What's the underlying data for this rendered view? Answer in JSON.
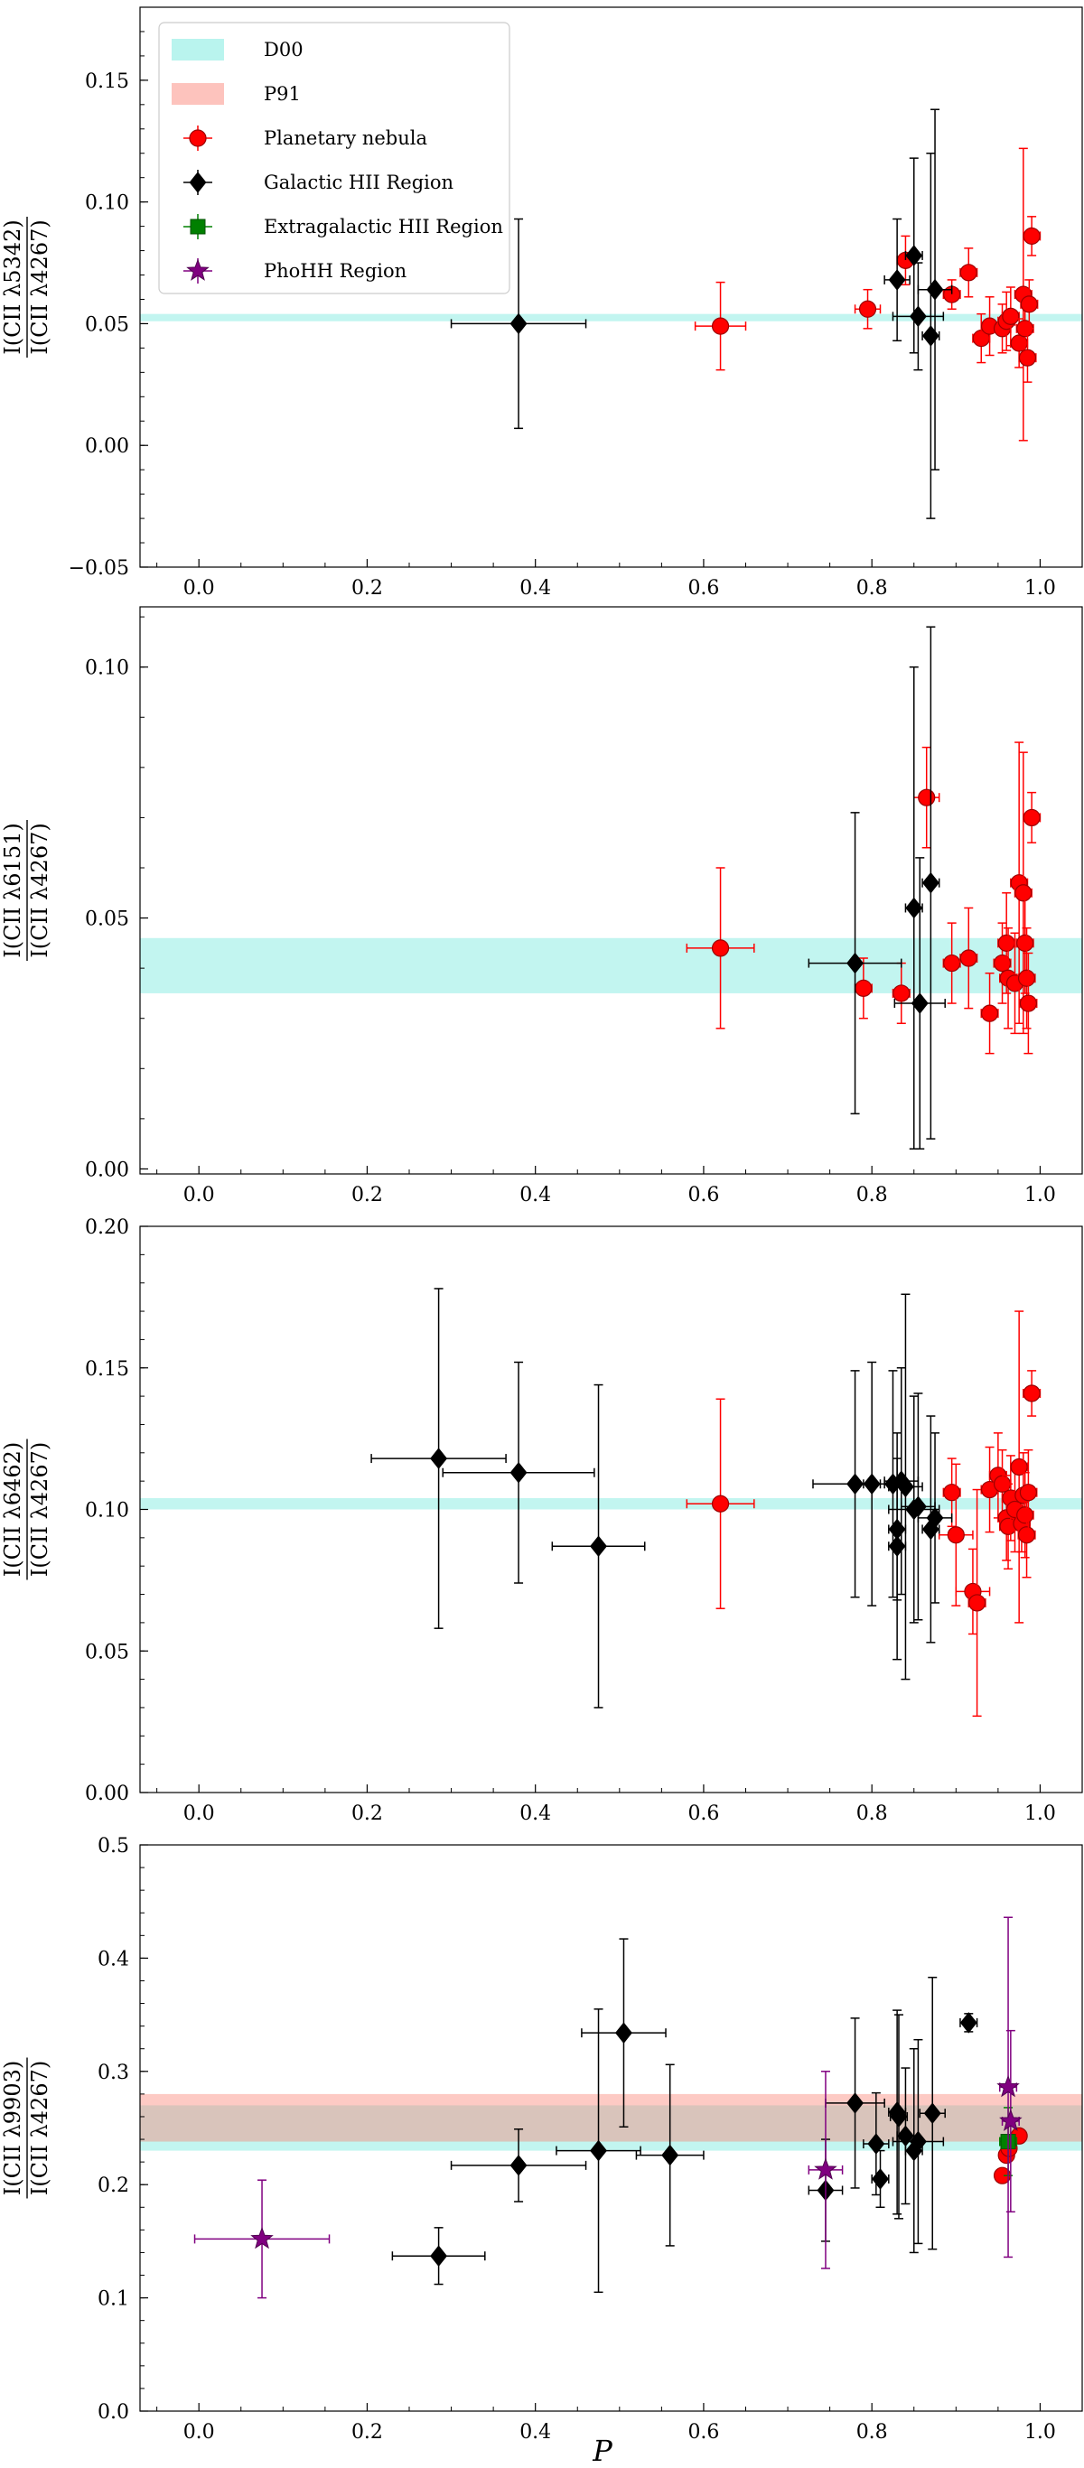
{
  "legend": {
    "entries": [
      {
        "label": "D00",
        "kind": "band",
        "color": "#40e0d0"
      },
      {
        "label": "P91",
        "kind": "band",
        "color": "#fa8072"
      },
      {
        "label": "Planetary nebula",
        "kind": "circle",
        "color": "#ff0000"
      },
      {
        "label": "Galactic HII Region",
        "kind": "diamond",
        "color": "#000000"
      },
      {
        "label": "Extragalactic HII Region",
        "kind": "square",
        "color": "#008000"
      },
      {
        "label": "PhoHH Region",
        "kind": "star",
        "color": "#800080"
      }
    ]
  },
  "xlabel": "P",
  "chart_data": [
    {
      "type": "scatter",
      "ylabel_num": "I(CII λ5342)",
      "ylabel_den": "I(CII λ4267)",
      "xlim": [
        -0.07,
        1.05
      ],
      "ylim": [
        -0.05,
        0.18
      ],
      "xticks": [
        "0.0",
        "0.2",
        "0.4",
        "0.6",
        "0.8",
        "1.0"
      ],
      "yticks": [
        "−0.05",
        "0.00",
        "0.05",
        "0.10",
        "0.15"
      ],
      "bands": [
        {
          "name": "D00",
          "y0": 0.051,
          "y1": 0.054
        }
      ],
      "series": [
        {
          "name": "Planetary nebula",
          "points": [
            [
              0.62,
              0.049,
              0.03,
              0.018
            ],
            [
              0.795,
              0.056,
              0.015,
              0.008
            ],
            [
              0.84,
              0.076,
              0.01,
              0.01
            ],
            [
              0.895,
              0.062,
              0.01,
              0.006
            ],
            [
              0.915,
              0.071,
              0.01,
              0.01
            ],
            [
              0.93,
              0.044,
              0.01,
              0.01
            ],
            [
              0.94,
              0.049,
              0.01,
              0.012
            ],
            [
              0.955,
              0.048,
              0.01,
              0.01
            ],
            [
              0.96,
              0.051,
              0.01,
              0.012
            ],
            [
              0.965,
              0.053,
              0.01,
              0.012
            ],
            [
              0.975,
              0.042,
              0.01,
              0.01
            ],
            [
              0.98,
              0.062,
              0.01,
              0.06
            ],
            [
              0.982,
              0.048,
              0.01,
              0.01
            ],
            [
              0.985,
              0.036,
              0.01,
              0.01
            ],
            [
              0.987,
              0.058,
              0.01,
              0.01
            ],
            [
              0.99,
              0.086,
              0.01,
              0.008
            ]
          ]
        },
        {
          "name": "Galactic HII Region",
          "points": [
            [
              0.38,
              0.05,
              0.08,
              0.043
            ],
            [
              0.83,
              0.068,
              0.015,
              0.025
            ],
            [
              0.85,
              0.078,
              0.01,
              0.04
            ],
            [
              0.855,
              0.053,
              0.03,
              0.022
            ],
            [
              0.87,
              0.045,
              0.01,
              0.075
            ],
            [
              0.875,
              0.064,
              0.02,
              0.074
            ]
          ]
        }
      ]
    },
    {
      "type": "scatter",
      "ylabel_num": "I(CII λ6151)",
      "ylabel_den": "I(CII λ4267)",
      "xlim": [
        -0.07,
        1.05
      ],
      "ylim": [
        -0.001,
        0.112
      ],
      "xticks": [
        "0.0",
        "0.2",
        "0.4",
        "0.6",
        "0.8",
        "1.0"
      ],
      "yticks": [
        "0.00",
        "0.05",
        "0.10"
      ],
      "bands": [
        {
          "name": "D00",
          "y0": 0.035,
          "y1": 0.046
        }
      ],
      "series": [
        {
          "name": "Planetary nebula",
          "points": [
            [
              0.62,
              0.044,
              0.04,
              0.016
            ],
            [
              0.79,
              0.036,
              0.01,
              0.006
            ],
            [
              0.835,
              0.035,
              0.01,
              0.006
            ],
            [
              0.865,
              0.074,
              0.015,
              0.01
            ],
            [
              0.895,
              0.041,
              0.01,
              0.008
            ],
            [
              0.915,
              0.042,
              0.01,
              0.01
            ],
            [
              0.94,
              0.031,
              0.01,
              0.008
            ],
            [
              0.955,
              0.041,
              0.01,
              0.008
            ],
            [
              0.96,
              0.045,
              0.01,
              0.01
            ],
            [
              0.962,
              0.038,
              0.01,
              0.01
            ],
            [
              0.97,
              0.037,
              0.01,
              0.01
            ],
            [
              0.975,
              0.057,
              0.01,
              0.028
            ],
            [
              0.98,
              0.055,
              0.01,
              0.028
            ],
            [
              0.982,
              0.045,
              0.01,
              0.01
            ],
            [
              0.984,
              0.038,
              0.01,
              0.01
            ],
            [
              0.986,
              0.033,
              0.01,
              0.01
            ],
            [
              0.99,
              0.07,
              0.01,
              0.005
            ]
          ]
        },
        {
          "name": "Galactic HII Region",
          "points": [
            [
              0.78,
              0.041,
              0.055,
              0.03
            ],
            [
              0.85,
              0.052,
              0.01,
              0.048
            ],
            [
              0.857,
              0.033,
              0.03,
              0.029
            ],
            [
              0.87,
              0.057,
              0.01,
              0.051
            ]
          ]
        }
      ]
    },
    {
      "type": "scatter",
      "ylabel_num": "I(CII λ6462)",
      "ylabel_den": "I(CII λ4267)",
      "xlim": [
        -0.07,
        1.05
      ],
      "ylim": [
        0.0,
        0.2
      ],
      "xticks": [
        "0.0",
        "0.2",
        "0.4",
        "0.6",
        "0.8",
        "1.0"
      ],
      "yticks": [
        "0.00",
        "0.05",
        "0.10",
        "0.15",
        "0.20"
      ],
      "bands": [
        {
          "name": "D00",
          "y0": 0.1,
          "y1": 0.104
        }
      ],
      "series": [
        {
          "name": "Planetary nebula",
          "points": [
            [
              0.62,
              0.102,
              0.04,
              0.037
            ],
            [
              0.895,
              0.106,
              0.01,
              0.012
            ],
            [
              0.9,
              0.091,
              0.02,
              0.025
            ],
            [
              0.92,
              0.071,
              0.02,
              0.015
            ],
            [
              0.925,
              0.067,
              0.01,
              0.04
            ],
            [
              0.94,
              0.107,
              0.01,
              0.015
            ],
            [
              0.95,
              0.112,
              0.01,
              0.015
            ],
            [
              0.955,
              0.109,
              0.01,
              0.012
            ],
            [
              0.96,
              0.097,
              0.01,
              0.015
            ],
            [
              0.962,
              0.094,
              0.01,
              0.015
            ],
            [
              0.965,
              0.104,
              0.01,
              0.015
            ],
            [
              0.97,
              0.1,
              0.01,
              0.015
            ],
            [
              0.975,
              0.115,
              0.01,
              0.055
            ],
            [
              0.978,
              0.095,
              0.01,
              0.01
            ],
            [
              0.98,
              0.105,
              0.01,
              0.015
            ],
            [
              0.982,
              0.098,
              0.01,
              0.015
            ],
            [
              0.984,
              0.091,
              0.01,
              0.015
            ],
            [
              0.986,
              0.106,
              0.01,
              0.015
            ],
            [
              0.99,
              0.141,
              0.01,
              0.008
            ]
          ]
        },
        {
          "name": "Galactic HII Region",
          "points": [
            [
              0.285,
              0.118,
              0.08,
              0.06
            ],
            [
              0.38,
              0.113,
              0.09,
              0.039
            ],
            [
              0.475,
              0.087,
              0.055,
              0.057
            ],
            [
              0.78,
              0.109,
              0.05,
              0.04
            ],
            [
              0.8,
              0.109,
              0.01,
              0.043
            ],
            [
              0.825,
              0.109,
              0.01,
              0.04
            ],
            [
              0.83,
              0.093,
              0.01,
              0.025
            ],
            [
              0.83,
              0.087,
              0.01,
              0.04
            ],
            [
              0.835,
              0.11,
              0.02,
              0.04
            ],
            [
              0.84,
              0.108,
              0.02,
              0.068
            ],
            [
              0.85,
              0.1,
              0.03,
              0.04
            ],
            [
              0.855,
              0.101,
              0.02,
              0.04
            ],
            [
              0.87,
              0.093,
              0.01,
              0.04
            ],
            [
              0.875,
              0.097,
              0.02,
              0.03
            ]
          ]
        }
      ]
    },
    {
      "type": "scatter",
      "ylabel_num": "I(CII λ9903)",
      "ylabel_den": "I(CII λ4267)",
      "xlim": [
        -0.07,
        1.05
      ],
      "ylim": [
        0.0,
        0.5
      ],
      "xticks": [
        "0.0",
        "0.2",
        "0.4",
        "0.6",
        "0.8",
        "1.0"
      ],
      "yticks": [
        "0.0",
        "0.1",
        "0.2",
        "0.3",
        "0.4",
        "0.5"
      ],
      "bands": [
        {
          "name": "D00",
          "y0": 0.23,
          "y1": 0.27
        },
        {
          "name": "P91",
          "y0": 0.238,
          "y1": 0.28
        }
      ],
      "series": [
        {
          "name": "Planetary nebula",
          "points": [
            [
              0.955,
              0.208,
              0.0,
              0.0
            ],
            [
              0.96,
              0.226,
              0.0,
              0.0
            ],
            [
              0.963,
              0.232,
              0.0,
              0.0
            ],
            [
              0.975,
              0.243,
              0.0,
              0.0
            ]
          ]
        },
        {
          "name": "Galactic HII Region",
          "points": [
            [
              0.285,
              0.137,
              0.055,
              0.025
            ],
            [
              0.38,
              0.217,
              0.08,
              0.032
            ],
            [
              0.475,
              0.23,
              0.05,
              0.125
            ],
            [
              0.505,
              0.334,
              0.05,
              0.083
            ],
            [
              0.56,
              0.226,
              0.04,
              0.08
            ],
            [
              0.745,
              0.195,
              0.02,
              0.045
            ],
            [
              0.78,
              0.272,
              0.035,
              0.075
            ],
            [
              0.805,
              0.236,
              0.015,
              0.045
            ],
            [
              0.81,
              0.205,
              0.01,
              0.025
            ],
            [
              0.83,
              0.264,
              0.01,
              0.09
            ],
            [
              0.832,
              0.26,
              0.01,
              0.09
            ],
            [
              0.84,
              0.243,
              0.01,
              0.06
            ],
            [
              0.85,
              0.23,
              0.01,
              0.09
            ],
            [
              0.855,
              0.238,
              0.03,
              0.09
            ],
            [
              0.872,
              0.263,
              0.015,
              0.12
            ],
            [
              0.915,
              0.343,
              0.01,
              0.008
            ]
          ]
        },
        {
          "name": "Extragalactic HII Region",
          "points": [
            [
              0.962,
              0.238,
              0.01,
              0.03
            ]
          ]
        },
        {
          "name": "PhoHH Region",
          "points": [
            [
              0.075,
              0.152,
              0.08,
              0.052
            ],
            [
              0.745,
              0.213,
              0.02,
              0.087
            ],
            [
              0.962,
              0.286,
              0.01,
              0.15
            ],
            [
              0.965,
              0.256,
              0.01,
              0.08
            ]
          ]
        }
      ]
    }
  ]
}
